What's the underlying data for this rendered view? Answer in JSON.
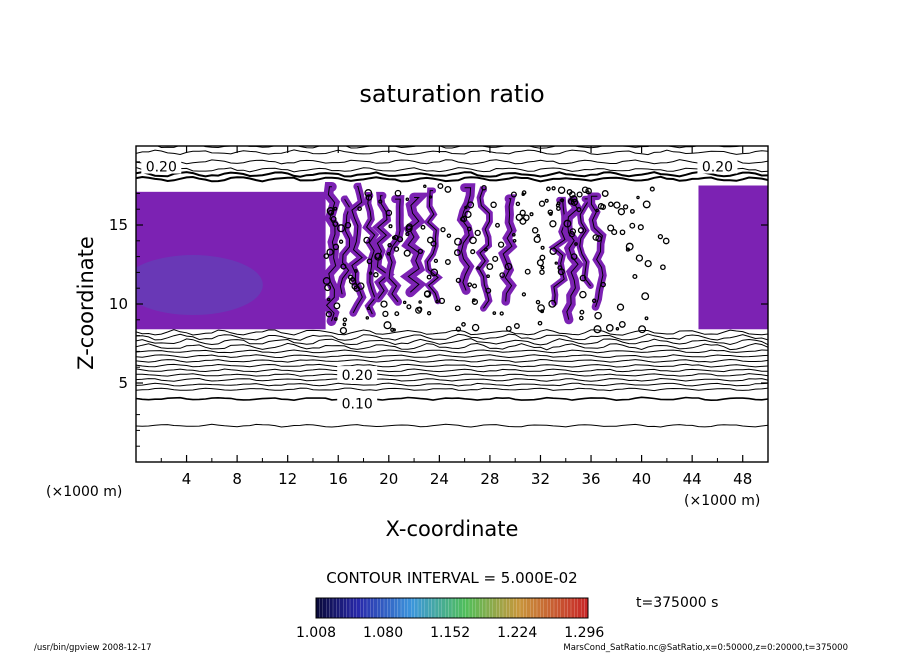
{
  "chart_data": {
    "type": "contour",
    "title": "saturation ratio",
    "xlabel": "X-coordinate",
    "ylabel": "Z-coordinate",
    "x_unit": "(×1000 m)",
    "y_unit": "(×1000 m)",
    "xlim": [
      0,
      50
    ],
    "ylim": [
      0,
      20
    ],
    "x_ticks": [
      4,
      8,
      12,
      16,
      20,
      24,
      28,
      32,
      36,
      40,
      44,
      48
    ],
    "y_ticks": [
      5,
      10,
      15
    ],
    "contour_interval_text": "CONTOUR INTERVAL = 5.000E-02",
    "time_text": "t=375000 s",
    "colorbar_ticks": [
      "1.008",
      "1.080",
      "1.152",
      "1.224",
      "1.296"
    ],
    "colorbar_range": [
      1.008,
      1.3
    ],
    "contour_labels": [
      {
        "text": "0.20",
        "x": 2.0,
        "z": 18.7
      },
      {
        "text": "0.20",
        "x": 46.0,
        "z": 18.7
      },
      {
        "text": "0.20",
        "x": 17.5,
        "z": 5.5
      },
      {
        "text": "0.10",
        "x": 17.5,
        "z": 3.7
      }
    ],
    "upper_contour_levels_z": [
      20.0,
      19.6,
      19.0,
      18.5,
      18.2,
      17.9
    ],
    "lower_contour_levels_z": [
      8.2,
      7.9,
      7.6,
      7.3,
      7.0,
      6.7,
      6.4,
      6.1,
      5.8,
      5.5,
      5.2,
      4.9,
      4.6,
      4.0,
      2.3
    ],
    "cloud_regions": [
      {
        "x0": 0,
        "x1": 15,
        "z0": 8.4,
        "z1": 17.1,
        "color": "#7c22b3"
      },
      {
        "x0": 44.5,
        "x1": 50,
        "z0": 8.4,
        "z1": 17.5,
        "color": "#7c22b3"
      }
    ],
    "supersat_streaks_x": [
      15.5,
      16.5,
      17.5,
      18.5,
      19.5,
      20.5,
      22,
      23.5,
      26,
      27.5,
      29.5,
      33.5,
      34.5,
      35.5,
      36.5
    ],
    "colors": {
      "cloud": "#7c22b3",
      "cloud_deep": "#5a4bb8",
      "contour": "#000000"
    },
    "footer_left": "/usr/bin/gpview   2008-12-17",
    "footer_right": "MarsCond_SatRatio.nc@SatRatio,x=0:50000,z=0:20000,t=375000"
  }
}
